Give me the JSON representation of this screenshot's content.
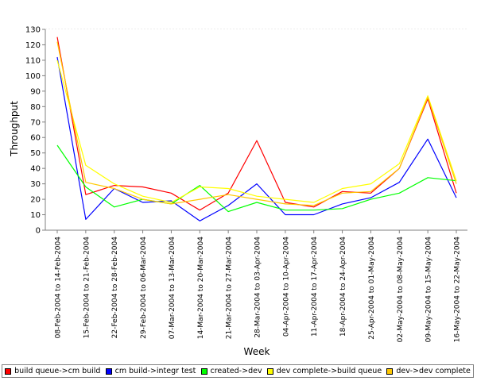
{
  "chart_data": {
    "type": "line",
    "title": "",
    "xlabel": "Week",
    "ylabel": "Throughput",
    "ylim": [
      0,
      130
    ],
    "yticks": [
      0,
      10,
      20,
      30,
      40,
      50,
      60,
      70,
      80,
      90,
      100,
      110,
      120,
      130
    ],
    "grid": true,
    "legend_position": "bottom",
    "categories": [
      "08-Feb-2004 to 14-Feb-2004",
      "15-Feb-2004 to 21-Feb-2004",
      "22-Feb-2004 to 28-Feb-2004",
      "29-Feb-2004 to 06-Mar-2004",
      "07-Mar-2004 to 13-Mar-2004",
      "14-Mar-2004 to 20-Mar-2004",
      "21-Mar-2004 to 27-Mar-2004",
      "28-Mar-2004 to 03-Apr-2004",
      "04-Apr-2004 to 10-Apr-2004",
      "11-Apr-2004 to 17-Apr-2004",
      "18-Apr-2004 to 24-Apr-2004",
      "25-Apr-2004 to 01-May-2004",
      "02-May-2004 to 08-May-2004",
      "09-May-2004 to 15-May-2004",
      "16-May-2004 to 22-May-2004"
    ],
    "series": [
      {
        "name": "build queue->cm build",
        "color": "#ff0000",
        "values": [
          125,
          23,
          29,
          28,
          24,
          13,
          24,
          58,
          18,
          15,
          25,
          24,
          40,
          85,
          24
        ]
      },
      {
        "name": "cm build->integr test",
        "color": "#0000ff",
        "values": [
          112,
          7,
          27,
          18,
          19,
          6,
          16,
          30,
          10,
          10,
          17,
          21,
          31,
          59,
          21
        ]
      },
      {
        "name": "created->dev",
        "color": "#00ff00",
        "values": [
          55,
          28,
          15,
          20,
          17,
          29,
          12,
          18,
          13,
          13,
          14,
          20,
          24,
          34,
          32
        ]
      },
      {
        "name": "dev complete->build queue",
        "color": "#ffff00",
        "values": [
          110,
          42,
          30,
          22,
          18,
          28,
          27,
          22,
          20,
          18,
          27,
          30,
          43,
          87,
          32
        ]
      },
      {
        "name": "dev->dev complete",
        "color": "#ffc800",
        "values": [
          122,
          31,
          27,
          20,
          17,
          20,
          23,
          20,
          17,
          16,
          24,
          25,
          40,
          86,
          30
        ]
      }
    ]
  }
}
